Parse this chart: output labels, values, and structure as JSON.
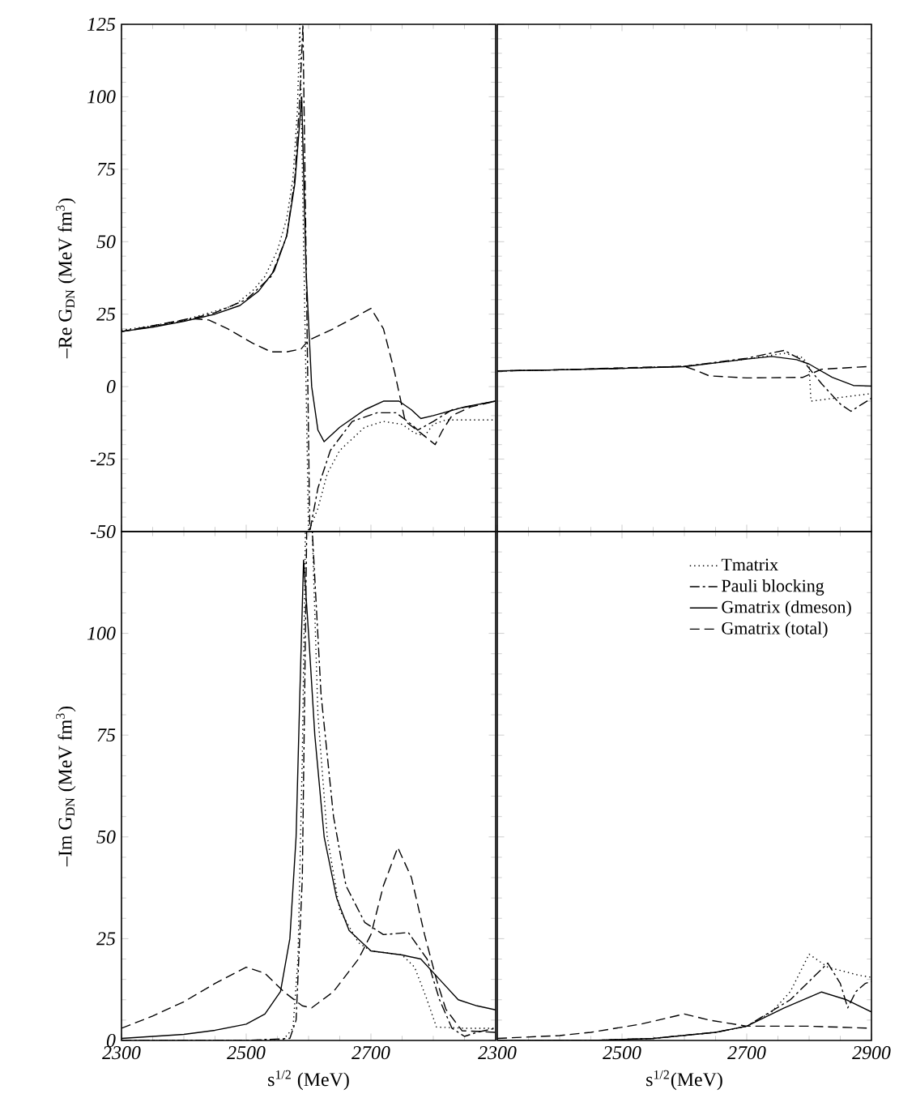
{
  "chart_data": [
    {
      "type": "line",
      "ylabel": "–Re G$_{DN}$ (MeV fm$^{3}$)",
      "xlim": [
        2300,
        2900
      ],
      "ylim": [
        -50,
        125
      ],
      "xticks": [
        2300,
        2500,
        2700,
        2900
      ],
      "yticks": [
        -50,
        -25,
        0,
        25,
        50,
        75,
        100,
        125
      ],
      "tick_labels": "y",
      "grid": false,
      "legend": false,
      "series": [
        {
          "color": "#000000",
          "line_style": "dotted",
          "x": [
            2300,
            2350,
            2400,
            2450,
            2480,
            2510,
            2530,
            2550,
            2565,
            2575,
            2582,
            2586,
            2600,
            2615,
            2630,
            2650,
            2690,
            2720,
            2750,
            2770,
            2786,
            2800,
            2820,
            2900
          ],
          "values": [
            19.5,
            21,
            23,
            26,
            28,
            33,
            38,
            47,
            58,
            72,
            95,
            125,
            -50,
            -42,
            -30,
            -22,
            -14,
            -12,
            -13,
            -16,
            -17,
            -13,
            -11.5,
            -11.5
          ]
        },
        {
          "color": "#000000",
          "line_style": "dashdot",
          "x": [
            2300,
            2350,
            2400,
            2450,
            2500,
            2540,
            2565,
            2578,
            2586,
            2591,
            2602,
            2615,
            2635,
            2670,
            2710,
            2740,
            2765,
            2775,
            2800,
            2830,
            2900
          ],
          "values": [
            19,
            20.7,
            22.7,
            25.5,
            30,
            38,
            52,
            72,
            100,
            125,
            -50,
            -35,
            -22,
            -12,
            -9,
            -9,
            -13,
            -15,
            -12,
            -8,
            -5
          ]
        },
        {
          "color": "#000000",
          "line_style": "solid",
          "x": [
            2300,
            2350,
            2400,
            2450,
            2490,
            2520,
            2545,
            2565,
            2578,
            2589,
            2596,
            2605,
            2615,
            2625,
            2650,
            2690,
            2720,
            2745,
            2765,
            2780,
            2800,
            2850,
            2900
          ],
          "values": [
            19,
            20.5,
            22.5,
            25,
            28,
            33,
            40,
            52,
            70,
            100,
            40,
            0,
            -15,
            -19,
            -14,
            -8,
            -5,
            -5,
            -8,
            -11,
            -10,
            -7,
            -5
          ]
        },
        {
          "color": "#000000",
          "line_style": "dashed",
          "x": [
            2300,
            2350,
            2410,
            2440,
            2470,
            2510,
            2540,
            2565,
            2588,
            2600,
            2640,
            2675,
            2700,
            2720,
            2738,
            2755,
            2780,
            2803,
            2815,
            2830,
            2860,
            2900
          ],
          "values": [
            19,
            21,
            23.5,
            23,
            20,
            15,
            12,
            12,
            13,
            16,
            20,
            24,
            27,
            20,
            5,
            -12,
            -16,
            -20,
            -15,
            -10,
            -7,
            -5
          ]
        }
      ]
    },
    {
      "type": "line",
      "xlim": [
        2300,
        2900
      ],
      "ylim": [
        -50,
        125
      ],
      "xticks": [
        2300,
        2500,
        2700,
        2900
      ],
      "yticks": [
        -50,
        -25,
        0,
        25,
        50,
        75,
        100,
        125
      ],
      "tick_labels": false,
      "grid": false,
      "legend": false,
      "series": [
        {
          "color": "#000000",
          "line_style": "dotted",
          "x": [
            2300,
            2400,
            2500,
            2600,
            2700,
            2760,
            2790,
            2800,
            2803,
            2900
          ],
          "values": [
            5.4,
            5.8,
            6.3,
            7,
            9.5,
            11.5,
            10,
            7,
            -5,
            -2.4
          ]
        },
        {
          "color": "#000000",
          "line_style": "dashdot",
          "x": [
            2300,
            2400,
            2500,
            2600,
            2700,
            2760,
            2790,
            2820,
            2850,
            2867,
            2900
          ],
          "values": [
            5.4,
            5.8,
            6.3,
            7,
            9.8,
            12.5,
            9,
            1,
            -6,
            -8.5,
            -4
          ]
        },
        {
          "color": "#000000",
          "line_style": "solid",
          "x": [
            2300,
            2400,
            2500,
            2600,
            2700,
            2740,
            2780,
            2800,
            2837,
            2871,
            2900
          ],
          "values": [
            5.4,
            5.8,
            6.3,
            6.9,
            9.5,
            10.4,
            9.3,
            7.8,
            3.2,
            0.4,
            0.2
          ]
        },
        {
          "color": "#000000",
          "line_style": "dashed",
          "x": [
            2300,
            2400,
            2500,
            2600,
            2620,
            2640,
            2700,
            2790,
            2820,
            2900
          ],
          "values": [
            5.4,
            5.8,
            6.5,
            7,
            5.5,
            3.7,
            3,
            3.2,
            6,
            7
          ]
        }
      ]
    },
    {
      "type": "line",
      "ylabel": "–Im G$_{DN}$ (MeV fm$^{3}$)",
      "xlabel": "s$^{1/2}$ (MeV)",
      "xlim": [
        2300,
        2900
      ],
      "ylim": [
        0,
        125
      ],
      "xticks": [
        2300,
        2500,
        2700,
        {
          "value": 2900,
          "label": null
        }
      ],
      "yticks": [
        0,
        25,
        50,
        75,
        100,
        {
          "value": 125,
          "label": null
        }
      ],
      "grid": false,
      "legend": false,
      "series": [
        {
          "color": "#000000",
          "line_style": "dotted",
          "x": [
            2300,
            2500,
            2560,
            2575,
            2583,
            2590,
            2595,
            2606,
            2615,
            2630,
            2650,
            2680,
            2700,
            2750,
            2770,
            2790,
            2805,
            2850,
            2900
          ],
          "values": [
            0,
            0,
            0.3,
            3,
            20,
            70,
            125,
            125,
            80,
            50,
            32,
            24,
            22,
            21,
            18,
            10,
            3.3,
            3,
            3
          ]
        },
        {
          "color": "#000000",
          "line_style": "dashdot",
          "x": [
            2300,
            2500,
            2570,
            2580,
            2590,
            2597,
            2606,
            2620,
            2640,
            2660,
            2690,
            2720,
            2760,
            2790,
            2810,
            2830,
            2850,
            2870,
            2900
          ],
          "values": [
            0,
            0,
            0.5,
            5,
            40,
            125,
            125,
            85,
            55,
            38,
            29,
            26,
            26.5,
            20,
            10,
            3,
            1,
            2,
            3
          ]
        },
        {
          "color": "#000000",
          "line_style": "solid",
          "x": [
            2300,
            2400,
            2450,
            2500,
            2530,
            2555,
            2570,
            2580,
            2586,
            2592,
            2600,
            2610,
            2625,
            2645,
            2665,
            2700,
            2750,
            2780,
            2810,
            2840,
            2870,
            2900
          ],
          "values": [
            0.5,
            1.5,
            2.5,
            4,
            6.5,
            12,
            25,
            50,
            85,
            118,
            100,
            75,
            50,
            35,
            27,
            22,
            21,
            20,
            15,
            10,
            8.5,
            7.5
          ]
        },
        {
          "color": "#000000",
          "line_style": "dashed",
          "x": [
            2300,
            2350,
            2400,
            2450,
            2500,
            2530,
            2560,
            2590,
            2605,
            2640,
            2680,
            2700,
            2720,
            2743,
            2765,
            2786,
            2805,
            2820,
            2846,
            2900
          ],
          "values": [
            3,
            6,
            9.5,
            14,
            18,
            16.5,
            12,
            8.5,
            8,
            12,
            20,
            26,
            38,
            47.4,
            40,
            26,
            15,
            7.7,
            2.4,
            2
          ]
        }
      ]
    },
    {
      "type": "line",
      "xlabel": "s$^{1/2}$(MeV)",
      "xlim": [
        2300,
        2900
      ],
      "ylim": [
        0,
        125
      ],
      "xticks": [
        2300,
        2500,
        2700,
        2900
      ],
      "yticks": [
        0,
        25,
        50,
        75,
        100,
        125
      ],
      "tick_labels": "x",
      "grid": false,
      "legend": "top right",
      "series": [
        {
          "name": "Tmatrix",
          "color": "#000000",
          "line_style": "dotted",
          "x": [
            2300,
            2450,
            2550,
            2650,
            2700,
            2740,
            2770,
            2800,
            2830,
            2880,
            2900
          ],
          "values": [
            0,
            0,
            0.5,
            2,
            3.5,
            7,
            12,
            21.2,
            18,
            16,
            15.5
          ]
        },
        {
          "name": "Pauli blocking",
          "color": "#000000",
          "line_style": "dashdot",
          "x": [
            2300,
            2450,
            2550,
            2650,
            2700,
            2770,
            2810,
            2830,
            2850,
            2862,
            2875,
            2890,
            2900
          ],
          "values": [
            0,
            0,
            0.5,
            2,
            3.5,
            10,
            16,
            19,
            14,
            8,
            12,
            14,
            14.5
          ]
        },
        {
          "name": "Gmatrix (dmeson)",
          "color": "#000000",
          "line_style": "solid",
          "x": [
            2300,
            2450,
            2550,
            2650,
            2700,
            2760,
            2820,
            2860,
            2900
          ],
          "values": [
            0,
            0,
            0.5,
            2,
            3.5,
            8,
            11.9,
            10,
            7
          ]
        },
        {
          "name": "Gmatrix (total)",
          "color": "#000000",
          "line_style": "dashed",
          "x": [
            2300,
            2400,
            2450,
            2530,
            2600,
            2640,
            2700,
            2800,
            2900
          ],
          "values": [
            0.5,
            1.2,
            2,
            4,
            6.5,
            5,
            3.5,
            3.5,
            3
          ]
        }
      ]
    }
  ]
}
